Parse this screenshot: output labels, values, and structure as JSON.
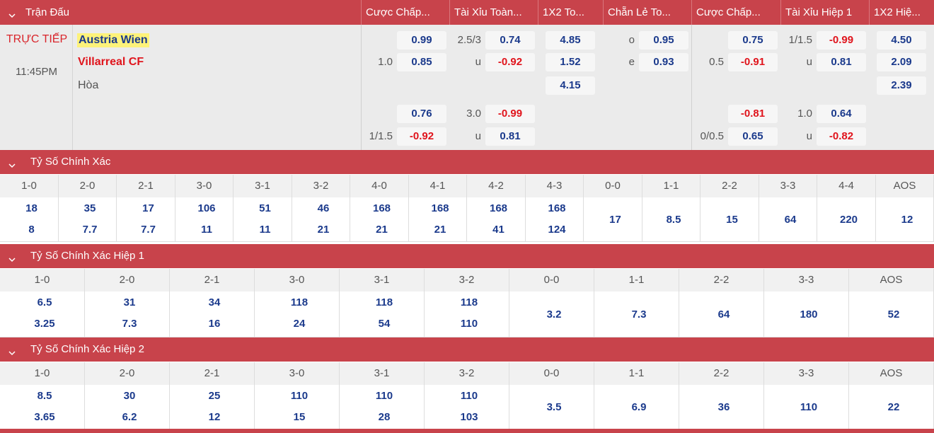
{
  "match": {
    "header": {
      "title": "Trận Đấu",
      "columns": [
        "Cược Chấp...",
        "Tài Xỉu Toàn...",
        "1X2 To...",
        "Chẵn Lẻ To...",
        "Cược Chấp...",
        "Tài Xỉu Hiệp 1",
        "1X2 Hiệ..."
      ]
    },
    "status": "TRỰC TIẾP",
    "time": "11:45PM",
    "home": "Austria Wien",
    "away": "Villarreal CF",
    "draw": "Hòa",
    "odds": [
      [
        {
          "value": "0.99"
        },
        {
          "line": "1.0",
          "value": "0.85"
        },
        null,
        {
          "value": "0.76"
        },
        {
          "line": "1/1.5",
          "value": "-0.92"
        }
      ],
      [
        {
          "line": "2.5/3",
          "value": "0.74"
        },
        {
          "line": "u",
          "value": "-0.92"
        },
        null,
        {
          "line": "3.0",
          "value": "-0.99"
        },
        {
          "line": "u",
          "value": "0.81"
        }
      ],
      [
        {
          "value": "4.85"
        },
        {
          "value": "1.52"
        },
        {
          "value": "4.15"
        },
        null,
        null
      ],
      [
        {
          "line": "o",
          "value": "0.95"
        },
        {
          "line": "e",
          "value": "0.93"
        },
        null,
        null,
        null
      ],
      [
        {
          "value": "0.75"
        },
        {
          "line": "0.5",
          "value": "-0.91"
        },
        null,
        {
          "value": "-0.81"
        },
        {
          "line": "0/0.5",
          "value": "0.65"
        }
      ],
      [
        {
          "line": "1/1.5",
          "value": "-0.99"
        },
        {
          "line": "u",
          "value": "0.81"
        },
        null,
        {
          "line": "1.0",
          "value": "0.64"
        },
        {
          "line": "u",
          "value": "-0.82"
        }
      ],
      [
        {
          "value": "4.50"
        },
        {
          "value": "2.09"
        },
        {
          "value": "2.39"
        },
        null,
        null
      ]
    ]
  },
  "sections": [
    {
      "title": "Tỷ Số Chính Xác",
      "cells": [
        {
          "label": "1-0",
          "values": [
            "18",
            "8"
          ]
        },
        {
          "label": "2-0",
          "values": [
            "35",
            "7.7"
          ]
        },
        {
          "label": "2-1",
          "values": [
            "17",
            "7.7"
          ]
        },
        {
          "label": "3-0",
          "values": [
            "106",
            "11"
          ]
        },
        {
          "label": "3-1",
          "values": [
            "51",
            "11"
          ]
        },
        {
          "label": "3-2",
          "values": [
            "46",
            "21"
          ]
        },
        {
          "label": "4-0",
          "values": [
            "168",
            "21"
          ]
        },
        {
          "label": "4-1",
          "values": [
            "168",
            "21"
          ]
        },
        {
          "label": "4-2",
          "values": [
            "168",
            "41"
          ]
        },
        {
          "label": "4-3",
          "values": [
            "168",
            "124"
          ]
        },
        {
          "label": "0-0",
          "values": [
            "17"
          ]
        },
        {
          "label": "1-1",
          "values": [
            "8.5"
          ]
        },
        {
          "label": "2-2",
          "values": [
            "15"
          ]
        },
        {
          "label": "3-3",
          "values": [
            "64"
          ]
        },
        {
          "label": "4-4",
          "values": [
            "220"
          ]
        },
        {
          "label": "AOS",
          "values": [
            "12"
          ]
        }
      ]
    },
    {
      "title": "Tỷ Số Chính Xác Hiệp 1",
      "cells": [
        {
          "label": "1-0",
          "values": [
            "6.5",
            "3.25"
          ]
        },
        {
          "label": "2-0",
          "values": [
            "31",
            "7.3"
          ]
        },
        {
          "label": "2-1",
          "values": [
            "34",
            "16"
          ]
        },
        {
          "label": "3-0",
          "values": [
            "118",
            "24"
          ]
        },
        {
          "label": "3-1",
          "values": [
            "118",
            "54"
          ]
        },
        {
          "label": "3-2",
          "values": [
            "118",
            "110"
          ]
        },
        {
          "label": "0-0",
          "values": [
            "3.2"
          ]
        },
        {
          "label": "1-1",
          "values": [
            "7.3"
          ]
        },
        {
          "label": "2-2",
          "values": [
            "64"
          ]
        },
        {
          "label": "3-3",
          "values": [
            "180"
          ]
        },
        {
          "label": "AOS",
          "values": [
            "52"
          ]
        }
      ]
    },
    {
      "title": "Tỷ Số Chính Xác Hiệp 2",
      "cells": [
        {
          "label": "1-0",
          "values": [
            "8.5",
            "3.65"
          ]
        },
        {
          "label": "2-0",
          "values": [
            "30",
            "6.2"
          ]
        },
        {
          "label": "2-1",
          "values": [
            "25",
            "12"
          ]
        },
        {
          "label": "3-0",
          "values": [
            "110",
            "15"
          ]
        },
        {
          "label": "3-1",
          "values": [
            "110",
            "28"
          ]
        },
        {
          "label": "3-2",
          "values": [
            "110",
            "103"
          ]
        },
        {
          "label": "0-0",
          "values": [
            "3.5"
          ]
        },
        {
          "label": "1-1",
          "values": [
            "6.9"
          ]
        },
        {
          "label": "2-2",
          "values": [
            "36"
          ]
        },
        {
          "label": "3-3",
          "values": [
            "110"
          ]
        },
        {
          "label": "AOS",
          "values": [
            "22"
          ]
        }
      ]
    }
  ]
}
